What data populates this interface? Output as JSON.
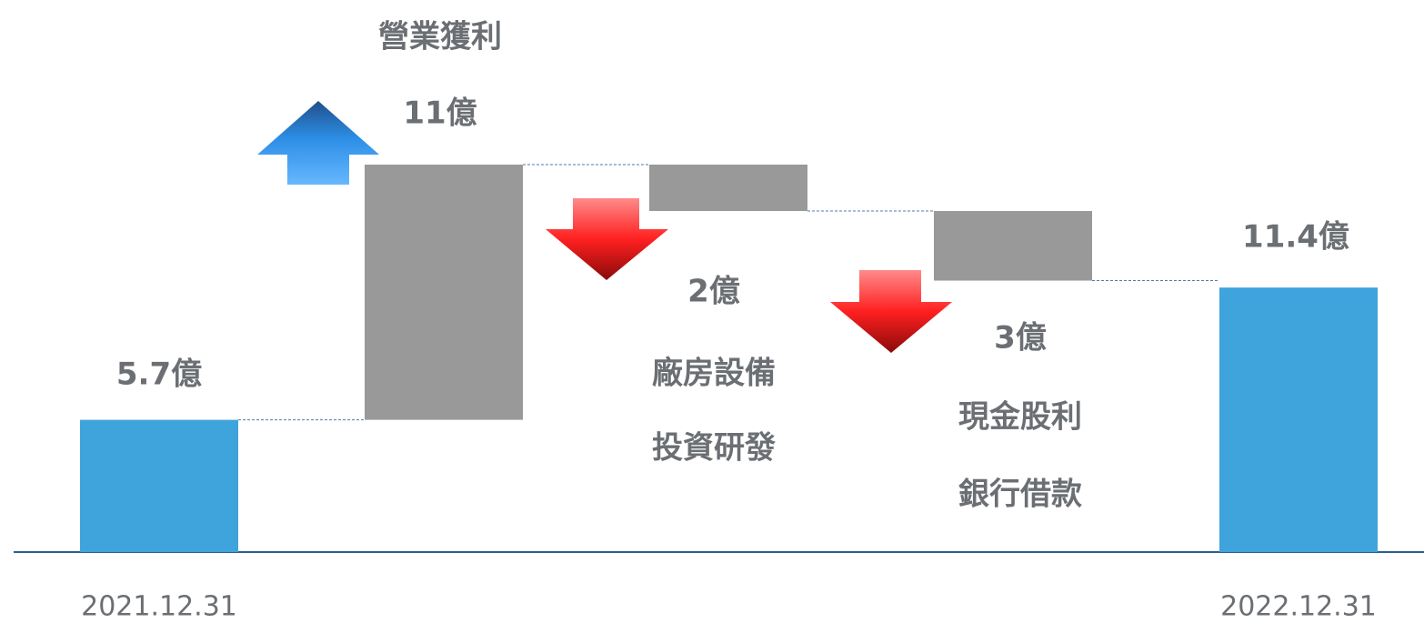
{
  "chart_data": {
    "type": "waterfall",
    "categories": [
      "2021.12.31",
      null,
      null,
      null,
      "2022.12.31"
    ],
    "values": [
      5.7,
      11,
      -2,
      -3,
      11.4
    ],
    "value_labels": [
      "5.7億",
      "11億",
      "2億",
      "3億",
      "11.4億"
    ],
    "measure": [
      "absolute",
      "relative",
      "relative",
      "relative",
      "total"
    ],
    "colors": [
      "#3fa3dc",
      "#999999",
      "#999999",
      "#999999",
      "#3fa3dc"
    ],
    "annotations": [
      "營業獲利",
      "廠房設備",
      "投資研發",
      "現金股利",
      "銀行借款"
    ]
  }
}
